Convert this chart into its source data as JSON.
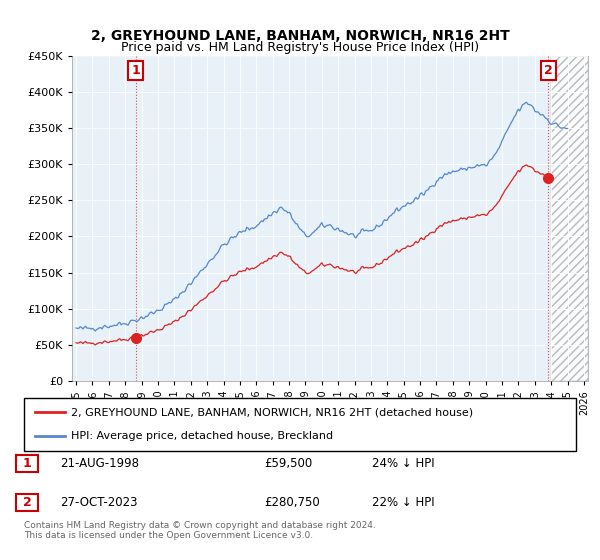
{
  "title": "2, GREYHOUND LANE, BANHAM, NORWICH, NR16 2HT",
  "subtitle": "Price paid vs. HM Land Registry's House Price Index (HPI)",
  "legend_line1": "2, GREYHOUND LANE, BANHAM, NORWICH, NR16 2HT (detached house)",
  "legend_line2": "HPI: Average price, detached house, Breckland",
  "footer": "Contains HM Land Registry data © Crown copyright and database right 2024.\nThis data is licensed under the Open Government Licence v3.0.",
  "marker1_label": "1",
  "marker1_date": "21-AUG-1998",
  "marker1_price": "£59,500",
  "marker1_hpi": "24% ↓ HPI",
  "marker2_label": "2",
  "marker2_date": "27-OCT-2023",
  "marker2_price": "£280,750",
  "marker2_hpi": "22% ↓ HPI",
  "red_line_color": "#dd2222",
  "blue_line_color": "#5588cc",
  "plot_bg_color": "#e8f0f8",
  "hatch_color": "#cccccc",
  "marker_box_color": "#cc0000",
  "ylim": [
    0,
    450000
  ],
  "xlim_start": 1994.75,
  "xlim_end": 2026.25,
  "sale1_x": 1998.65,
  "sale1_y": 59500,
  "sale2_x": 2023.82,
  "sale2_y": 280750,
  "hatch_start": 2024.0
}
